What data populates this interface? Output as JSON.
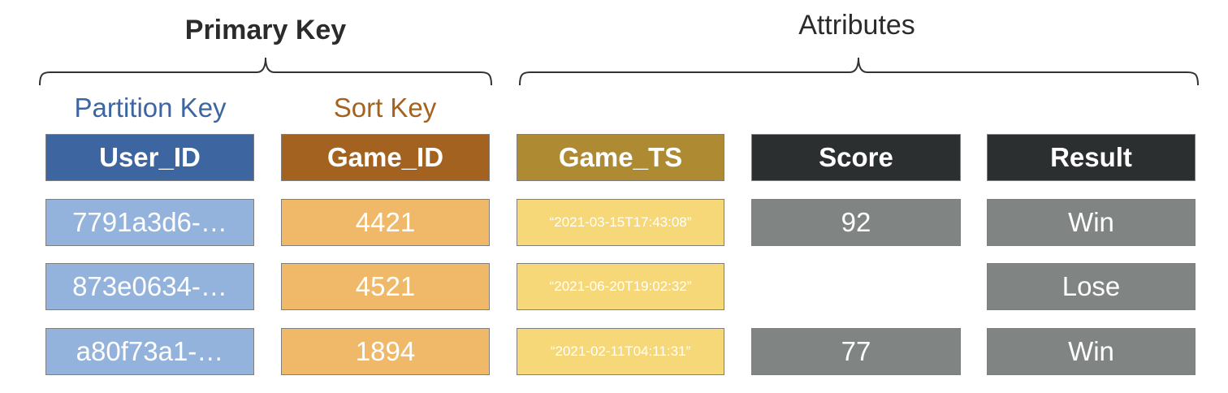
{
  "groups": {
    "primary_key": "Primary Key",
    "attributes": "Attributes",
    "partition_key": "Partition Key",
    "sort_key": "Sort Key"
  },
  "columns": [
    "User_ID",
    "Game_ID",
    "Game_TS",
    "Score",
    "Result"
  ],
  "rows": [
    {
      "user_id": "7791a3d6-…",
      "game_id": "4421",
      "game_ts": "“2021-03-15T17:43:08”",
      "score": "92",
      "result": "Win"
    },
    {
      "user_id": "873e0634-…",
      "game_id": "4521",
      "game_ts": "“2021-06-20T19:02:32”",
      "score": "",
      "result": "Lose"
    },
    {
      "user_id": "a80f73a1-…",
      "game_id": "1894",
      "game_ts": "“2021-02-11T04:11:31”",
      "score": "77",
      "result": "Win"
    }
  ],
  "colors": {
    "partition_key": "#3d65a0",
    "partition_key_cell": "#94b3dc",
    "sort_key": "#a3621f",
    "sort_key_cell": "#f0b96a",
    "game_ts_header": "#ae8a33",
    "game_ts_cell": "#f7d878",
    "attribute_header": "#2c2f30",
    "attribute_cell": "#808583"
  }
}
